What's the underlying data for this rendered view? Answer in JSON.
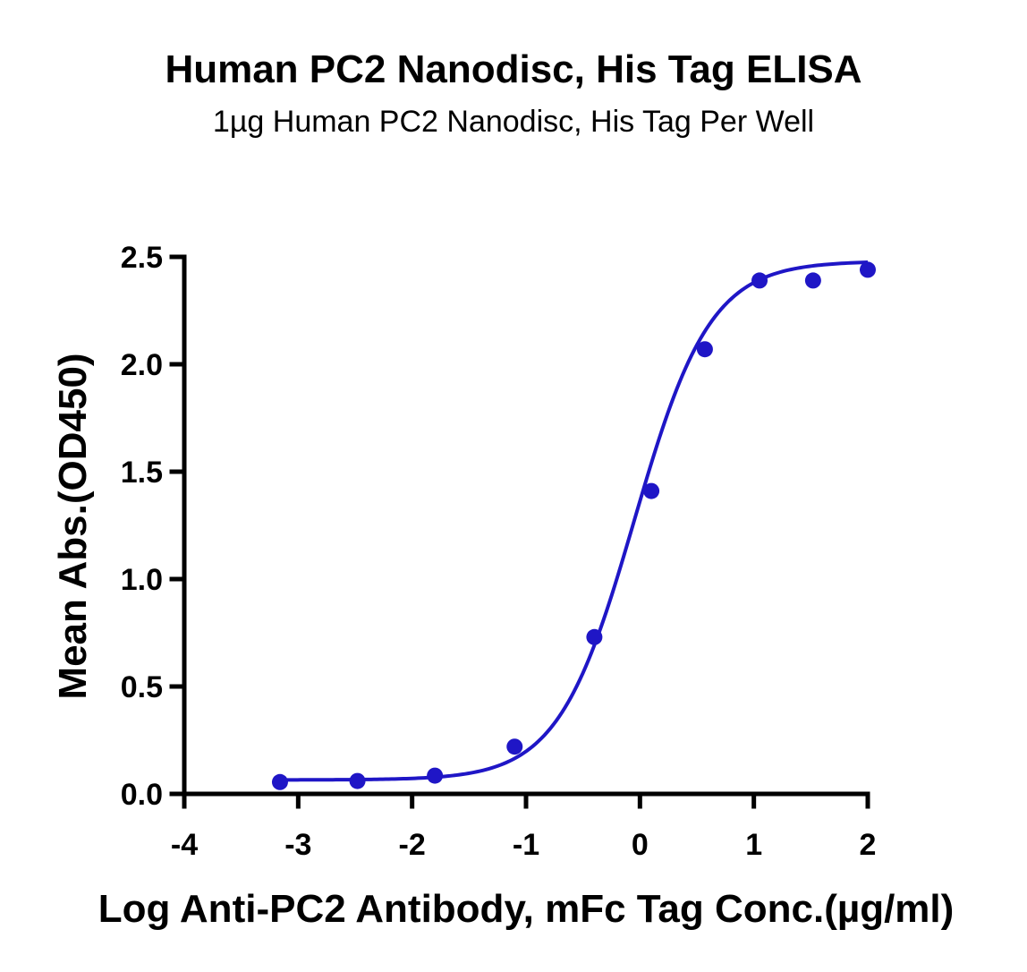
{
  "title": "Human PC2 Nanodisc, His Tag ELISA",
  "subtitle": "1µg Human PC2 Nanodisc, His Tag Per Well",
  "chart_data": {
    "type": "scatter",
    "title": "Human PC2 Nanodisc, His Tag ELISA",
    "subtitle": "1µg Human PC2 Nanodisc, His Tag Per Well",
    "xlabel": "Log Anti-PC2 Antibody, mFc Tag Conc.(µg/ml)",
    "ylabel": "Mean Abs.(OD450)",
    "xlim": [
      -4,
      2
    ],
    "ylim": [
      0,
      2.5
    ],
    "x_ticks": [
      -4,
      -3,
      -2,
      -1,
      0,
      1,
      2
    ],
    "x_tick_labels": [
      "-4",
      "-3",
      "-2",
      "-1",
      "0",
      "1",
      "2"
    ],
    "y_ticks": [
      0,
      0.5,
      1,
      1.5,
      2,
      2.5
    ],
    "y_tick_labels": [
      "0.0",
      "0.5",
      "1.0",
      "1.5",
      "2.0",
      "2.5"
    ],
    "grid": false,
    "color": "#1f16c6",
    "series": [
      {
        "points": [
          {
            "x": -3.16,
            "y": 0.055
          },
          {
            "x": -2.48,
            "y": 0.06
          },
          {
            "x": -1.8,
            "y": 0.085
          },
          {
            "x": -1.1,
            "y": 0.22
          },
          {
            "x": -0.4,
            "y": 0.73
          },
          {
            "x": 0.1,
            "y": 1.41
          },
          {
            "x": 0.57,
            "y": 2.07
          },
          {
            "x": 1.05,
            "y": 2.39
          },
          {
            "x": 1.52,
            "y": 2.39
          },
          {
            "x": 2.0,
            "y": 2.44
          }
        ],
        "fit": {
          "model": "4PL",
          "bottom": 0.065,
          "top": 2.48,
          "logEC50": -0.05,
          "hill": 1.3
        }
      }
    ]
  }
}
